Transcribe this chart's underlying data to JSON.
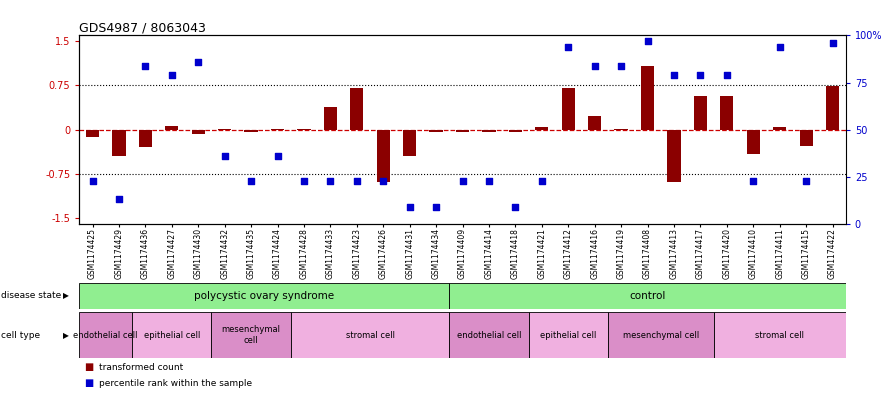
{
  "title": "GDS4987 / 8063043",
  "samples": [
    "GSM1174425",
    "GSM1174429",
    "GSM1174436",
    "GSM1174427",
    "GSM1174430",
    "GSM1174432",
    "GSM1174435",
    "GSM1174424",
    "GSM1174428",
    "GSM1174433",
    "GSM1174423",
    "GSM1174426",
    "GSM1174431",
    "GSM1174434",
    "GSM1174409",
    "GSM1174414",
    "GSM1174418",
    "GSM1174421",
    "GSM1174412",
    "GSM1174416",
    "GSM1174419",
    "GSM1174408",
    "GSM1174413",
    "GSM1174417",
    "GSM1174420",
    "GSM1174410",
    "GSM1174411",
    "GSM1174415",
    "GSM1174422"
  ],
  "bar_values": [
    -0.13,
    -0.45,
    -0.3,
    0.07,
    -0.07,
    0.01,
    -0.04,
    0.01,
    0.01,
    0.38,
    0.7,
    -0.88,
    -0.45,
    -0.04,
    -0.04,
    -0.04,
    -0.04,
    0.04,
    0.7,
    0.24,
    0.01,
    1.08,
    -0.88,
    0.57,
    0.57,
    -0.42,
    0.04,
    -0.28,
    0.74
  ],
  "percentile_values": [
    23,
    13,
    84,
    79,
    86,
    36,
    23,
    36,
    23,
    23,
    23,
    23,
    9,
    9,
    23,
    23,
    9,
    23,
    94,
    84,
    84,
    97,
    79,
    79,
    79,
    23,
    94,
    23,
    96
  ],
  "ylim_left": [
    -1.6,
    1.6
  ],
  "ylim_right": [
    0,
    100
  ],
  "yticks_left": [
    -1.5,
    -0.75,
    0.0,
    0.75,
    1.5
  ],
  "ytick_labels_left": [
    "-1.5",
    "-0.75",
    "0",
    "0.75",
    "1.5"
  ],
  "ytick_labels_right": [
    "0",
    "25",
    "50",
    "75",
    "100%"
  ],
  "hline_dotted": [
    -0.75,
    0.75
  ],
  "hline_red_dashed": 0.0,
  "disease_state_groups": [
    {
      "label": "polycystic ovary syndrome",
      "start": 0,
      "end": 13,
      "color": "#90ee90"
    },
    {
      "label": "control",
      "start": 14,
      "end": 28,
      "color": "#90ee90"
    }
  ],
  "cell_type_groups": [
    {
      "label": "endothelial cell",
      "start": 0,
      "end": 1,
      "color": "#da8ec8"
    },
    {
      "label": "epithelial cell",
      "start": 2,
      "end": 4,
      "color": "#f0b0e0"
    },
    {
      "label": "mesenchymal\ncell",
      "start": 5,
      "end": 7,
      "color": "#da8ec8"
    },
    {
      "label": "stromal cell",
      "start": 8,
      "end": 13,
      "color": "#f0b0e0"
    },
    {
      "label": "endothelial cell",
      "start": 14,
      "end": 16,
      "color": "#da8ec8"
    },
    {
      "label": "epithelial cell",
      "start": 17,
      "end": 19,
      "color": "#f0b0e0"
    },
    {
      "label": "mesenchymal cell",
      "start": 20,
      "end": 23,
      "color": "#da8ec8"
    },
    {
      "label": "stromal cell",
      "start": 24,
      "end": 28,
      "color": "#f0b0e0"
    }
  ],
  "bar_color": "#8B0000",
  "scatter_color": "#0000CD",
  "background_color": "#ffffff",
  "left_axis_color": "#cc0000",
  "right_axis_color": "#0000cc",
  "disease_state_label": "disease state",
  "cell_type_label": "cell type",
  "legend_items": [
    "transformed count",
    "percentile rank within the sample"
  ],
  "bar_width": 0.5
}
